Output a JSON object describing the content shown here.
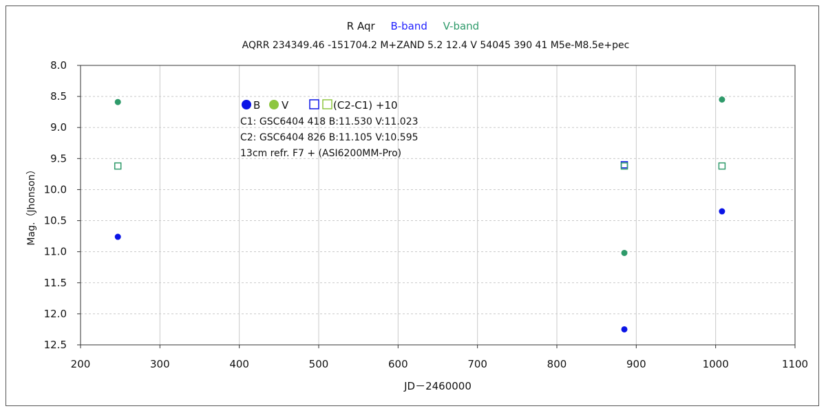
{
  "chart_data": {
    "type": "scatter",
    "title": {
      "star": "R Aqr",
      "b_label": "B-band",
      "v_label": "V-band",
      "subtitle": "AQRR 234349.46 -151704.2 M+ZAND 5.2 12.4 V 54045 390 41 M5e-M8.5e+pec"
    },
    "xlabel": "JD－2460000",
    "ylabel": "Mag.（Jhonson）",
    "xlim": [
      200,
      1100
    ],
    "ylim": [
      8.0,
      12.5
    ],
    "y_inverted": true,
    "grid": true,
    "x_ticks": [
      "200",
      "300",
      "400",
      "500",
      "600",
      "700",
      "800",
      "900",
      "1000",
      "1100"
    ],
    "y_ticks": [
      "8.0",
      "8.5",
      "9.0",
      "9.5",
      "10.0",
      "10.5",
      "11.0",
      "11.5",
      "12.0",
      "12.5"
    ],
    "series": [
      {
        "name": "B",
        "marker": "filled-circle",
        "color": "#0a14e6",
        "points": [
          [
            247,
            10.76
          ],
          [
            885,
            12.25
          ],
          [
            1008,
            10.35
          ]
        ]
      },
      {
        "name": "V",
        "marker": "filled-circle",
        "color": "#2e9a6a",
        "points": [
          [
            247,
            8.59
          ],
          [
            885,
            11.02
          ],
          [
            1008,
            8.55
          ]
        ]
      },
      {
        "name": "B (C2-C1)+10",
        "marker": "open-square",
        "color": "#0a14e6",
        "points": [
          [
            885,
            9.6
          ]
        ]
      },
      {
        "name": "V (C2-C1)+10",
        "marker": "open-square",
        "color": "#2e9a6a",
        "points": [
          [
            247,
            9.62
          ],
          [
            885,
            9.62
          ],
          [
            1008,
            9.62
          ]
        ]
      }
    ],
    "legend": {
      "b_label": "B",
      "v_label": "V",
      "diff_label": "(C2-C1) +10",
      "b_color": "#0a14e6",
      "v_color": "#8dc63f",
      "line1": "C1: GSC6404 418  B:11.530  V:11.023",
      "line2": "C2: GSC6404 826  B:11.105  V:10.595",
      "line3": "13cm refr.  F7  +  (ASI6200MM-Pro)"
    },
    "colors": {
      "b_title": "#1f1fff",
      "v_title": "#2e9a6a",
      "grid": "#c8c8c8"
    }
  }
}
